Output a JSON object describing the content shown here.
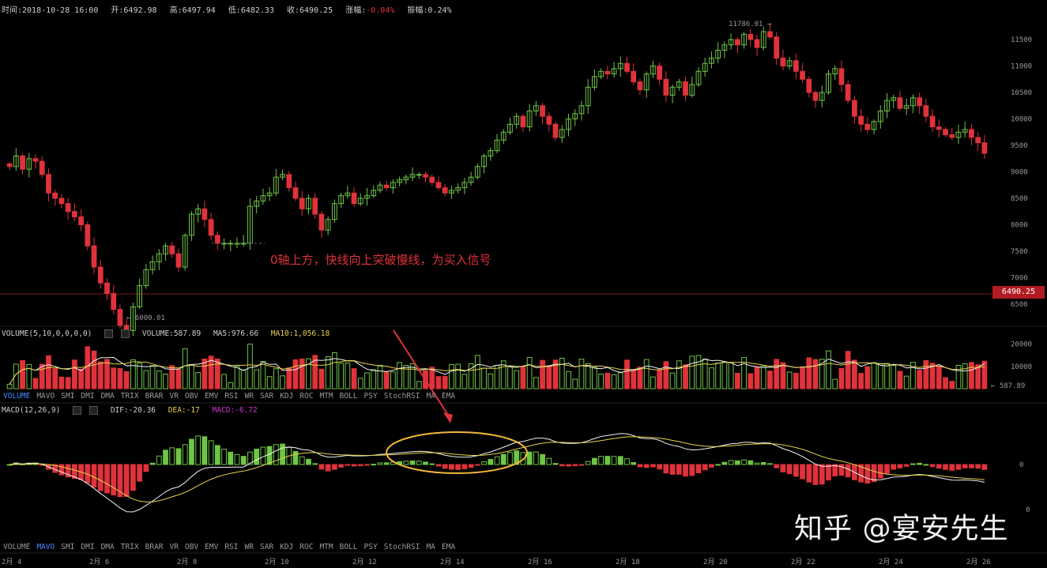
{
  "header": {
    "time": "时间:2018-10-28 16:00",
    "open": "开:6492.98",
    "high": "高:6497.94",
    "low": "低:6482.33",
    "close": "收:6490.25",
    "change_label": "涨幅:",
    "change_value": "-0.04%",
    "amplitude": "振幅:0.24%"
  },
  "price_axis": {
    "ticks": [
      "11500",
      "11000",
      "10500",
      "10000",
      "9500",
      "9000",
      "8500",
      "8000",
      "7500",
      "7000",
      "6500"
    ],
    "current": "6490.25",
    "high_label": "11786.01 →",
    "low_label": "← 6000.01"
  },
  "volume": {
    "title": "VOLUME(5,10,0,0,0,0)",
    "volume": "VOLUME:587.89",
    "ma5": "MA5:976.66",
    "ma10": "MA10:1,056.18",
    "ticks": [
      "20000",
      "10000"
    ],
    "last": "← 587.89"
  },
  "indicator_tabs_top": [
    "VOLUME",
    "MAVO",
    "SMI",
    "DMI",
    "DMA",
    "TRIX",
    "BRAR",
    "VR",
    "OBV",
    "EMV",
    "RSI",
    "WR",
    "SAR",
    "KDJ",
    "ROC",
    "MTM",
    "BOLL",
    "PSY",
    "StochRSI",
    "MA",
    "EMA"
  ],
  "indicator_tabs_bottom": [
    "VOLUME",
    "MAVO",
    "SMI",
    "DMI",
    "DMA",
    "TRIX",
    "BRAR",
    "VR",
    "OBV",
    "EMV",
    "RSI",
    "WR",
    "SAR",
    "KDJ",
    "ROC",
    "MTM",
    "BOLL",
    "PSY",
    "StochRSI",
    "MA",
    "EMA"
  ],
  "macd": {
    "title": "MACD(12,26,9)",
    "dif": "DIF:-20.36",
    "dea": "DEA:-17",
    "macd": "MACD:-6.72",
    "ticks": [
      "0",
      "0"
    ]
  },
  "annotation": "0轴上方，快线向上突破慢线，为买入信号",
  "watermark": "知乎 @宴安先生",
  "colors": {
    "up": "#6fc545",
    "down": "#e0323a",
    "ma5": "#f2f2f2",
    "ma10": "#e8d24a",
    "ellipse": "#f0b73a",
    "arrow": "#e0323a"
  },
  "chart_data": {
    "type": "candlestick",
    "x_ticks": [
      "2月 4",
      "2月 6",
      "2月 8",
      "2月 10",
      "2月 12",
      "2月 14",
      "2月 16",
      "2月 18",
      "2月 20",
      "2月 22",
      "2月 24",
      "2月 26"
    ],
    "price_range": [
      6350,
      11800
    ],
    "close": [
      9100,
      9300,
      9050,
      9250,
      9200,
      8950,
      8600,
      8500,
      8400,
      8250,
      8150,
      8000,
      7600,
      7200,
      6900,
      6700,
      6400,
      6100,
      6000,
      6450,
      6850,
      7150,
      7300,
      7450,
      7600,
      7450,
      7200,
      7800,
      8200,
      8300,
      8100,
      7800,
      7650,
      7650,
      7650,
      7650,
      7650,
      8350,
      8450,
      8550,
      8600,
      8900,
      8950,
      8700,
      8500,
      8300,
      8500,
      8200,
      7900,
      8100,
      8400,
      8550,
      8600,
      8400,
      8500,
      8550,
      8650,
      8750,
      8700,
      8800,
      8850,
      8900,
      8950,
      8950,
      8900,
      8800,
      8700,
      8600,
      8650,
      8700,
      8800,
      8900,
      9100,
      9300,
      9400,
      9600,
      9750,
      9900,
      10050,
      9850,
      10150,
      10250,
      10050,
      9900,
      9650,
      9800,
      10000,
      10100,
      10250,
      10600,
      10800,
      10900,
      10850,
      10950,
      11050,
      10900,
      10700,
      10550,
      10850,
      11000,
      10750,
      10450,
      10600,
      10700,
      10450,
      10650,
      10900,
      11050,
      11150,
      11300,
      11400,
      11500,
      11400,
      11600,
      11500,
      11350,
      11650,
      11550,
      11150,
      11000,
      11100,
      10900,
      10750,
      10500,
      10350,
      10500,
      10850,
      10950,
      10650,
      10350,
      10050,
      9900,
      9800,
      9950,
      10150,
      10350,
      10400,
      10200,
      10250,
      10400,
      10250,
      10050,
      9850,
      9800,
      9700,
      9650,
      9750,
      9800,
      9650,
      9550,
      9350
    ],
    "volume_ticks": [
      20000,
      10000
    ],
    "macd_zero": 0
  }
}
